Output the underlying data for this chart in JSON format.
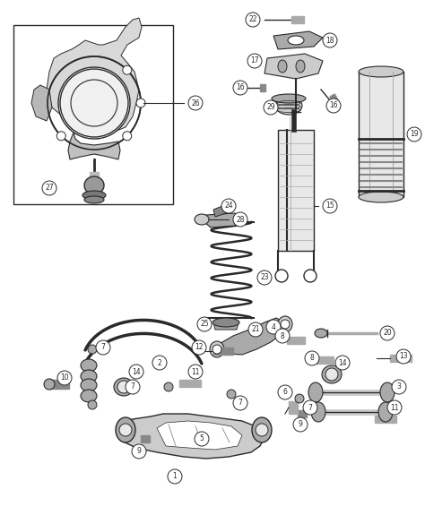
{
  "bg_color": "#ffffff",
  "line_color": "#2a2a2a",
  "gray1": "#888888",
  "gray2": "#aaaaaa",
  "gray3": "#cccccc",
  "gray4": "#e8e8e8",
  "fig_width": 4.74,
  "fig_height": 5.75,
  "dpi": 100
}
